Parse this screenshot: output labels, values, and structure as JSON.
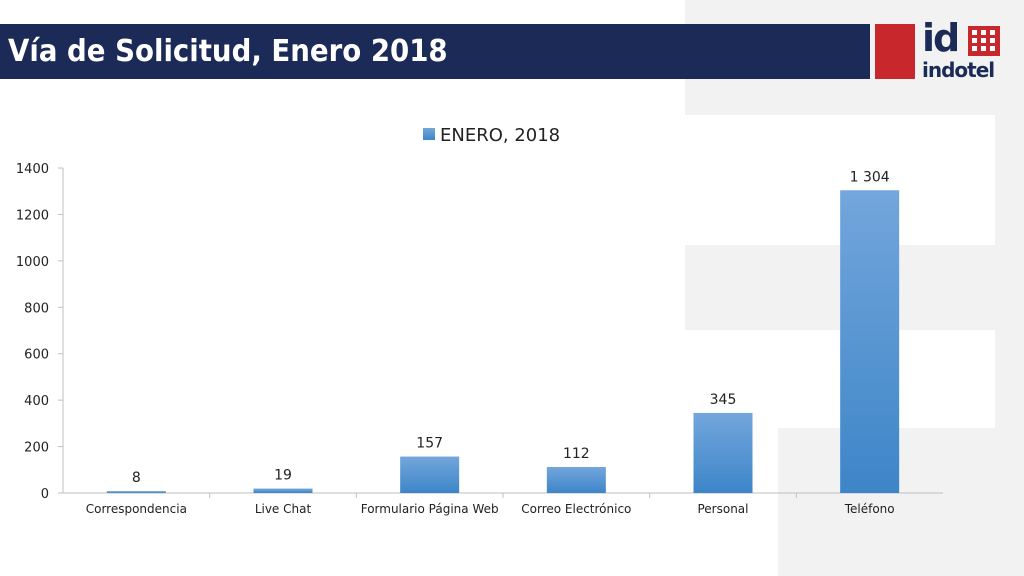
{
  "slide": {
    "title": "Vía de Solicitud, Enero 2018"
  },
  "logo": {
    "mark": "id",
    "word": "indotel",
    "icon": "phone-keypad-icon",
    "colors": {
      "navy": "#1b2a57",
      "red": "#c8282c"
    }
  },
  "chart_data": {
    "type": "bar",
    "categories": [
      "Correspondencia",
      "Live Chat",
      "Formulario Página Web",
      "Correo Electrónico",
      "Personal",
      "Teléfono"
    ],
    "series": [
      {
        "name": "ENERO, 2018",
        "values": [
          8,
          19,
          157,
          112,
          345,
          1304
        ],
        "labels": [
          "8",
          "19",
          "157",
          "112",
          "345",
          "1 304"
        ],
        "color": "#4a8fd1"
      }
    ],
    "yticks": [
      "0",
      "200",
      "400",
      "600",
      "800",
      "1000",
      "1200",
      "1400"
    ],
    "ylim": [
      0,
      1400
    ],
    "grid": false,
    "legend": "top-center"
  }
}
